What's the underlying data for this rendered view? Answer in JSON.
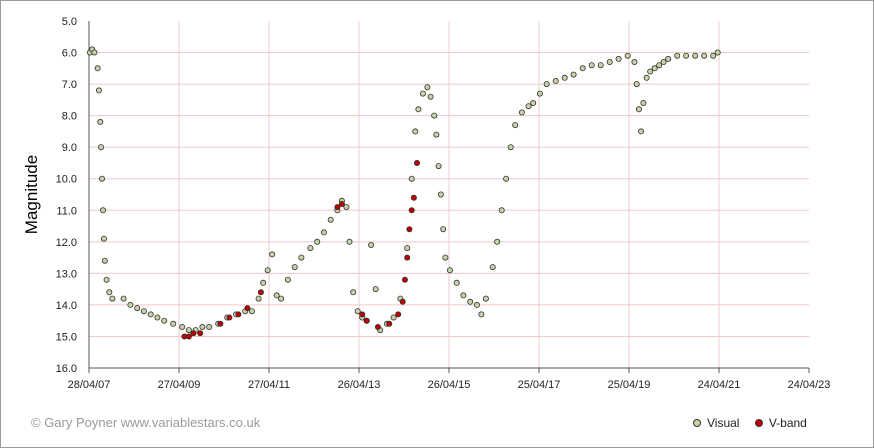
{
  "credit": "© Gary Poyner www.variablestars.co.uk",
  "chart_data": {
    "type": "scatter",
    "ylabel": "Magnitude",
    "ylim": [
      16.0,
      5.0
    ],
    "y_inverted": true,
    "yticks": [
      "5.0",
      "6.0",
      "7.0",
      "8.0",
      "9.0",
      "10.0",
      "11.0",
      "12.0",
      "13.0",
      "14.0",
      "15.0",
      "16.0"
    ],
    "xticks": [
      "28/04/07",
      "27/04/09",
      "27/04/11",
      "26/04/13",
      "26/04/15",
      "25/04/17",
      "25/04/19",
      "24/04/21",
      "24/04/23"
    ],
    "xlim": [
      "28/04/07",
      "24/04/23"
    ],
    "grid": true,
    "legend_placement": "bottom-right",
    "series": [
      {
        "name": "Visual",
        "color": "#c5d3a5",
        "points": [
          [
            2007.35,
            6.0
          ],
          [
            2007.4,
            5.9
          ],
          [
            2007.45,
            6.0
          ],
          [
            2007.52,
            6.5
          ],
          [
            2007.55,
            7.2
          ],
          [
            2007.58,
            8.2
          ],
          [
            2007.6,
            9.0
          ],
          [
            2007.62,
            10.0
          ],
          [
            2007.64,
            11.0
          ],
          [
            2007.66,
            11.9
          ],
          [
            2007.68,
            12.6
          ],
          [
            2007.72,
            13.2
          ],
          [
            2007.78,
            13.6
          ],
          [
            2007.85,
            13.8
          ],
          [
            2008.1,
            13.8
          ],
          [
            2008.25,
            14.0
          ],
          [
            2008.4,
            14.1
          ],
          [
            2008.55,
            14.2
          ],
          [
            2008.7,
            14.3
          ],
          [
            2008.85,
            14.4
          ],
          [
            2009.0,
            14.5
          ],
          [
            2009.2,
            14.6
          ],
          [
            2009.4,
            14.7
          ],
          [
            2009.55,
            14.8
          ],
          [
            2009.7,
            14.8
          ],
          [
            2009.85,
            14.7
          ],
          [
            2010.0,
            14.7
          ],
          [
            2010.2,
            14.6
          ],
          [
            2010.4,
            14.4
          ],
          [
            2010.6,
            14.3
          ],
          [
            2010.8,
            14.2
          ],
          [
            2010.95,
            14.2
          ],
          [
            2011.1,
            13.8
          ],
          [
            2011.2,
            13.3
          ],
          [
            2011.3,
            12.9
          ],
          [
            2011.4,
            12.4
          ],
          [
            2011.5,
            13.7
          ],
          [
            2011.6,
            13.8
          ],
          [
            2011.75,
            13.2
          ],
          [
            2011.9,
            12.8
          ],
          [
            2012.05,
            12.5
          ],
          [
            2012.25,
            12.2
          ],
          [
            2012.4,
            12.0
          ],
          [
            2012.55,
            11.7
          ],
          [
            2012.7,
            11.3
          ],
          [
            2012.85,
            11.0
          ],
          [
            2012.95,
            10.7
          ],
          [
            2013.05,
            10.9
          ],
          [
            2013.12,
            12.0
          ],
          [
            2013.2,
            13.6
          ],
          [
            2013.3,
            14.2
          ],
          [
            2013.4,
            14.4
          ],
          [
            2013.5,
            14.5
          ],
          [
            2013.6,
            12.1
          ],
          [
            2013.7,
            13.5
          ],
          [
            2013.8,
            14.8
          ],
          [
            2013.95,
            14.6
          ],
          [
            2014.1,
            14.4
          ],
          [
            2014.25,
            13.8
          ],
          [
            2014.4,
            12.2
          ],
          [
            2014.5,
            10.0
          ],
          [
            2014.58,
            8.5
          ],
          [
            2014.65,
            7.8
          ],
          [
            2014.75,
            7.3
          ],
          [
            2014.85,
            7.1
          ],
          [
            2014.92,
            7.4
          ],
          [
            2015.0,
            8.0
          ],
          [
            2015.05,
            8.6
          ],
          [
            2015.1,
            9.6
          ],
          [
            2015.15,
            10.5
          ],
          [
            2015.2,
            11.6
          ],
          [
            2015.25,
            12.5
          ],
          [
            2015.35,
            12.9
          ],
          [
            2015.5,
            13.3
          ],
          [
            2015.65,
            13.7
          ],
          [
            2015.8,
            13.9
          ],
          [
            2015.95,
            14.0
          ],
          [
            2016.05,
            14.3
          ],
          [
            2016.15,
            13.8
          ],
          [
            2016.3,
            12.8
          ],
          [
            2016.4,
            12.0
          ],
          [
            2016.5,
            11.0
          ],
          [
            2016.6,
            10.0
          ],
          [
            2016.7,
            9.0
          ],
          [
            2016.8,
            8.3
          ],
          [
            2016.95,
            7.9
          ],
          [
            2017.1,
            7.7
          ],
          [
            2017.2,
            7.6
          ],
          [
            2017.35,
            7.3
          ],
          [
            2017.5,
            7.0
          ],
          [
            2017.7,
            6.9
          ],
          [
            2017.9,
            6.8
          ],
          [
            2018.1,
            6.7
          ],
          [
            2018.3,
            6.5
          ],
          [
            2018.5,
            6.4
          ],
          [
            2018.7,
            6.4
          ],
          [
            2018.9,
            6.3
          ],
          [
            2019.1,
            6.2
          ],
          [
            2019.3,
            6.1
          ],
          [
            2019.45,
            6.3
          ],
          [
            2019.5,
            7.0
          ],
          [
            2019.55,
            7.8
          ],
          [
            2019.6,
            8.5
          ],
          [
            2019.65,
            7.6
          ],
          [
            2019.72,
            6.8
          ],
          [
            2019.8,
            6.6
          ],
          [
            2019.9,
            6.5
          ],
          [
            2020.0,
            6.4
          ],
          [
            2020.1,
            6.3
          ],
          [
            2020.2,
            6.2
          ],
          [
            2020.4,
            6.1
          ],
          [
            2020.6,
            6.1
          ],
          [
            2020.8,
            6.1
          ],
          [
            2021.0,
            6.1
          ],
          [
            2021.2,
            6.1
          ],
          [
            2021.3,
            6.0
          ]
        ]
      },
      {
        "name": "V-band",
        "color": "#c00000",
        "points": [
          [
            2009.45,
            15.0
          ],
          [
            2009.55,
            15.0
          ],
          [
            2009.65,
            14.9
          ],
          [
            2009.8,
            14.9
          ],
          [
            2010.25,
            14.6
          ],
          [
            2010.45,
            14.4
          ],
          [
            2010.65,
            14.3
          ],
          [
            2010.85,
            14.1
          ],
          [
            2011.15,
            13.6
          ],
          [
            2012.85,
            10.9
          ],
          [
            2012.95,
            10.8
          ],
          [
            2013.4,
            14.3
          ],
          [
            2013.5,
            14.5
          ],
          [
            2013.75,
            14.7
          ],
          [
            2014.0,
            14.6
          ],
          [
            2014.2,
            14.3
          ],
          [
            2014.3,
            13.9
          ],
          [
            2014.35,
            13.2
          ],
          [
            2014.4,
            12.5
          ],
          [
            2014.45,
            11.6
          ],
          [
            2014.5,
            11.0
          ],
          [
            2014.55,
            10.6
          ],
          [
            2014.62,
            9.5
          ]
        ]
      }
    ]
  }
}
